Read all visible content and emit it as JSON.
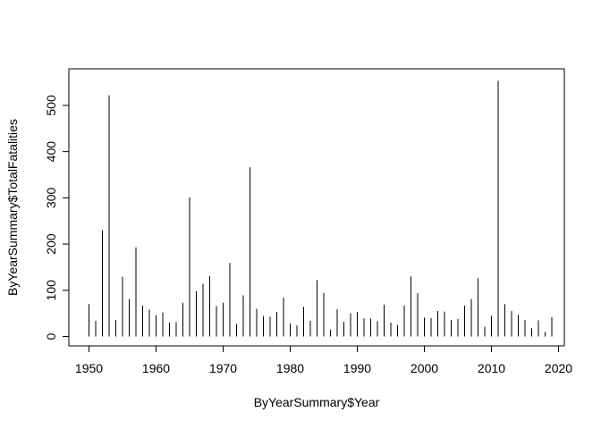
{
  "chart_data": {
    "type": "bar",
    "title": "",
    "xlabel": "ByYearSummary$Year",
    "ylabel": "ByYearSummary$TotalFatalities",
    "xlim": [
      1950,
      2019
    ],
    "ylim": [
      0,
      555
    ],
    "xticks": [
      1950,
      1960,
      1970,
      1980,
      1990,
      2000,
      2010,
      2020
    ],
    "yticks": [
      0,
      100,
      200,
      300,
      400,
      500
    ],
    "grid": false,
    "legend": "none",
    "x": [
      1950,
      1951,
      1952,
      1953,
      1954,
      1955,
      1956,
      1957,
      1958,
      1959,
      1960,
      1961,
      1962,
      1963,
      1964,
      1965,
      1966,
      1967,
      1968,
      1969,
      1970,
      1971,
      1972,
      1973,
      1974,
      1975,
      1976,
      1977,
      1978,
      1979,
      1980,
      1981,
      1982,
      1983,
      1984,
      1985,
      1986,
      1987,
      1988,
      1989,
      1990,
      1991,
      1992,
      1993,
      1994,
      1995,
      1996,
      1997,
      1998,
      1999,
      2000,
      2001,
      2002,
      2003,
      2004,
      2005,
      2006,
      2007,
      2008,
      2009,
      2010,
      2011,
      2012,
      2013,
      2014,
      2015,
      2016,
      2017,
      2018,
      2019
    ],
    "values": [
      70,
      34,
      230,
      522,
      36,
      129,
      81,
      193,
      67,
      58,
      46,
      52,
      30,
      31,
      73,
      301,
      98,
      114,
      131,
      66,
      73,
      159,
      27,
      89,
      366,
      60,
      44,
      43,
      53,
      84,
      28,
      24,
      64,
      34,
      122,
      94,
      15,
      59,
      32,
      50,
      53,
      39,
      39,
      33,
      69,
      30,
      25,
      67,
      130,
      94,
      41,
      40,
      55,
      54,
      36,
      38,
      67,
      81,
      126,
      21,
      45,
      553,
      70,
      55,
      47,
      36,
      18,
      35,
      10,
      42
    ],
    "color": "#000000"
  }
}
